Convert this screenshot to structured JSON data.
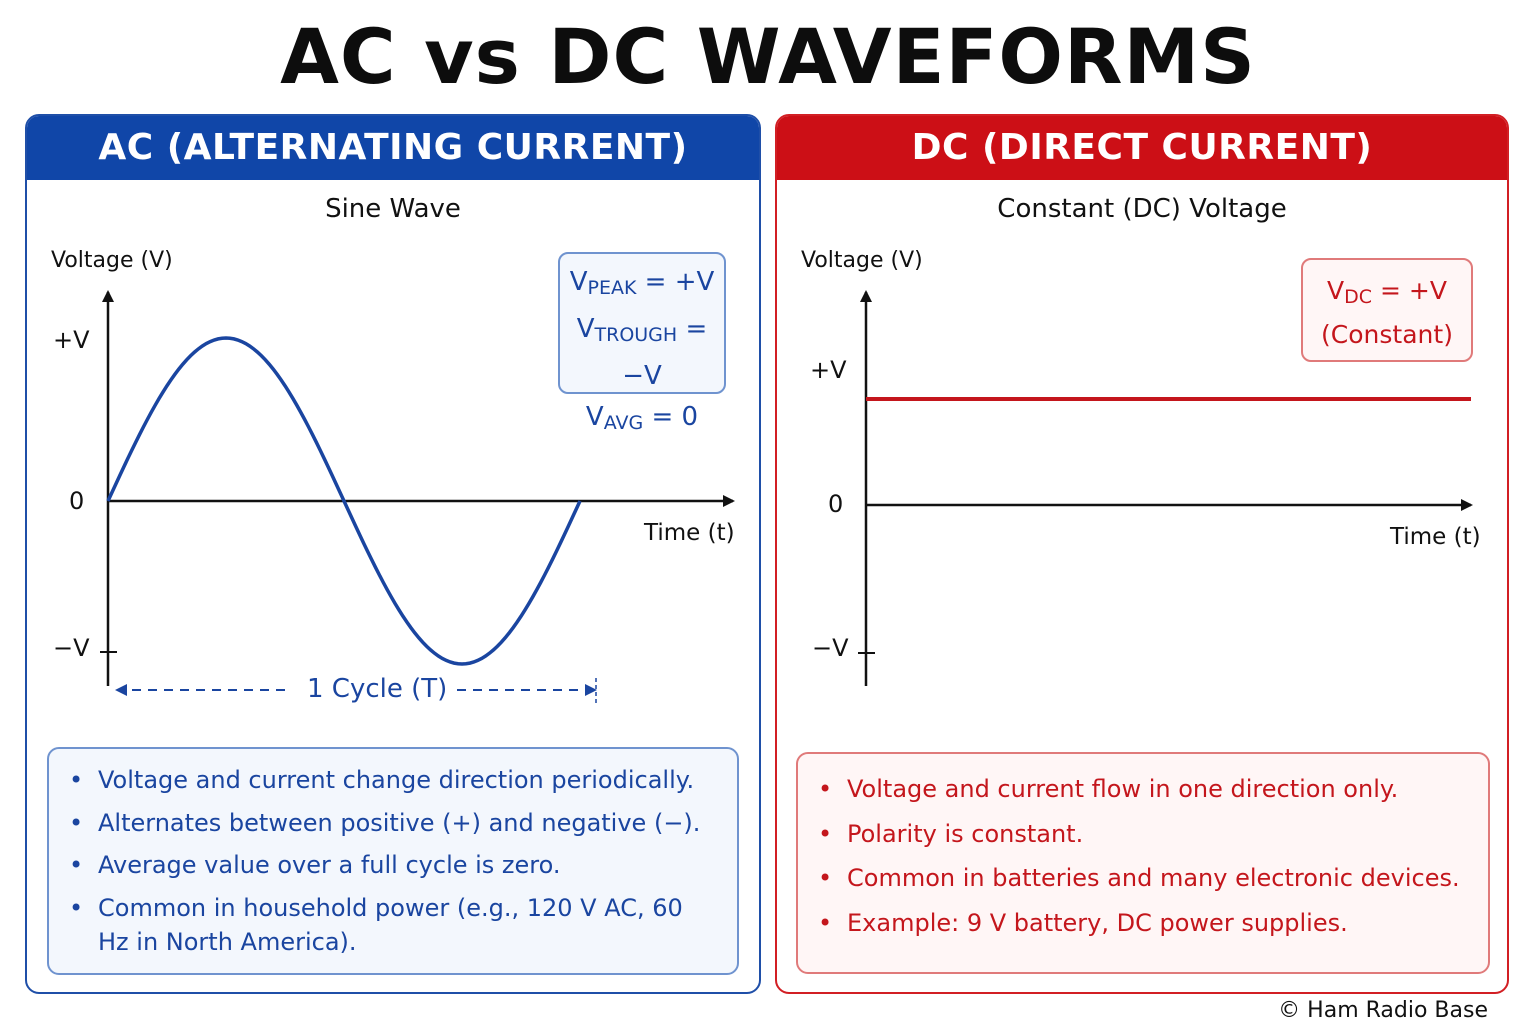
{
  "title": "AC vs DC WAVEFORMS",
  "copyright": "© Ham Radio Base",
  "ac": {
    "header": "AC (ALTERNATING CURRENT)",
    "subtitle": "Sine Wave",
    "y_axis_label": "Voltage (V)",
    "x_axis_label": "Time (t)",
    "ticks": {
      "pos": "+V",
      "zero": "0",
      "neg": "−V"
    },
    "info": [
      {
        "v": "V",
        "sub": "PEAK",
        "rest": " = +V"
      },
      {
        "v": "V",
        "sub": "TROUGH",
        "rest": " = −V"
      },
      {
        "v": "V",
        "sub": "AVG",
        "rest": " = 0"
      }
    ],
    "cycle_label": "1 Cycle (T)",
    "bullets": [
      "Voltage and current change direction periodically.",
      "Alternates between positive (+) and negative (−).",
      "Average value over a full cycle is zero.",
      "Common in household power (e.g., 120 V AC, 60 Hz in North America)."
    ],
    "color": "#1a45a0"
  },
  "dc": {
    "header": "DC (DIRECT CURRENT)",
    "subtitle": "Constant (DC) Voltage",
    "y_axis_label": "Voltage (V)",
    "x_axis_label": "Time (t)",
    "ticks": {
      "pos": "+V",
      "zero": "0",
      "neg": "−V"
    },
    "info": [
      {
        "v": "V",
        "sub": "DC",
        "rest": " = +V"
      },
      {
        "v": "",
        "sub": "",
        "rest": "(Constant)"
      }
    ],
    "bullets": [
      "Voltage and current flow in one direction only.",
      "Polarity is constant.",
      "Common in batteries and many electronic devices.",
      "Example: 9 V battery, DC power supplies."
    ],
    "color": "#c4161c"
  }
}
